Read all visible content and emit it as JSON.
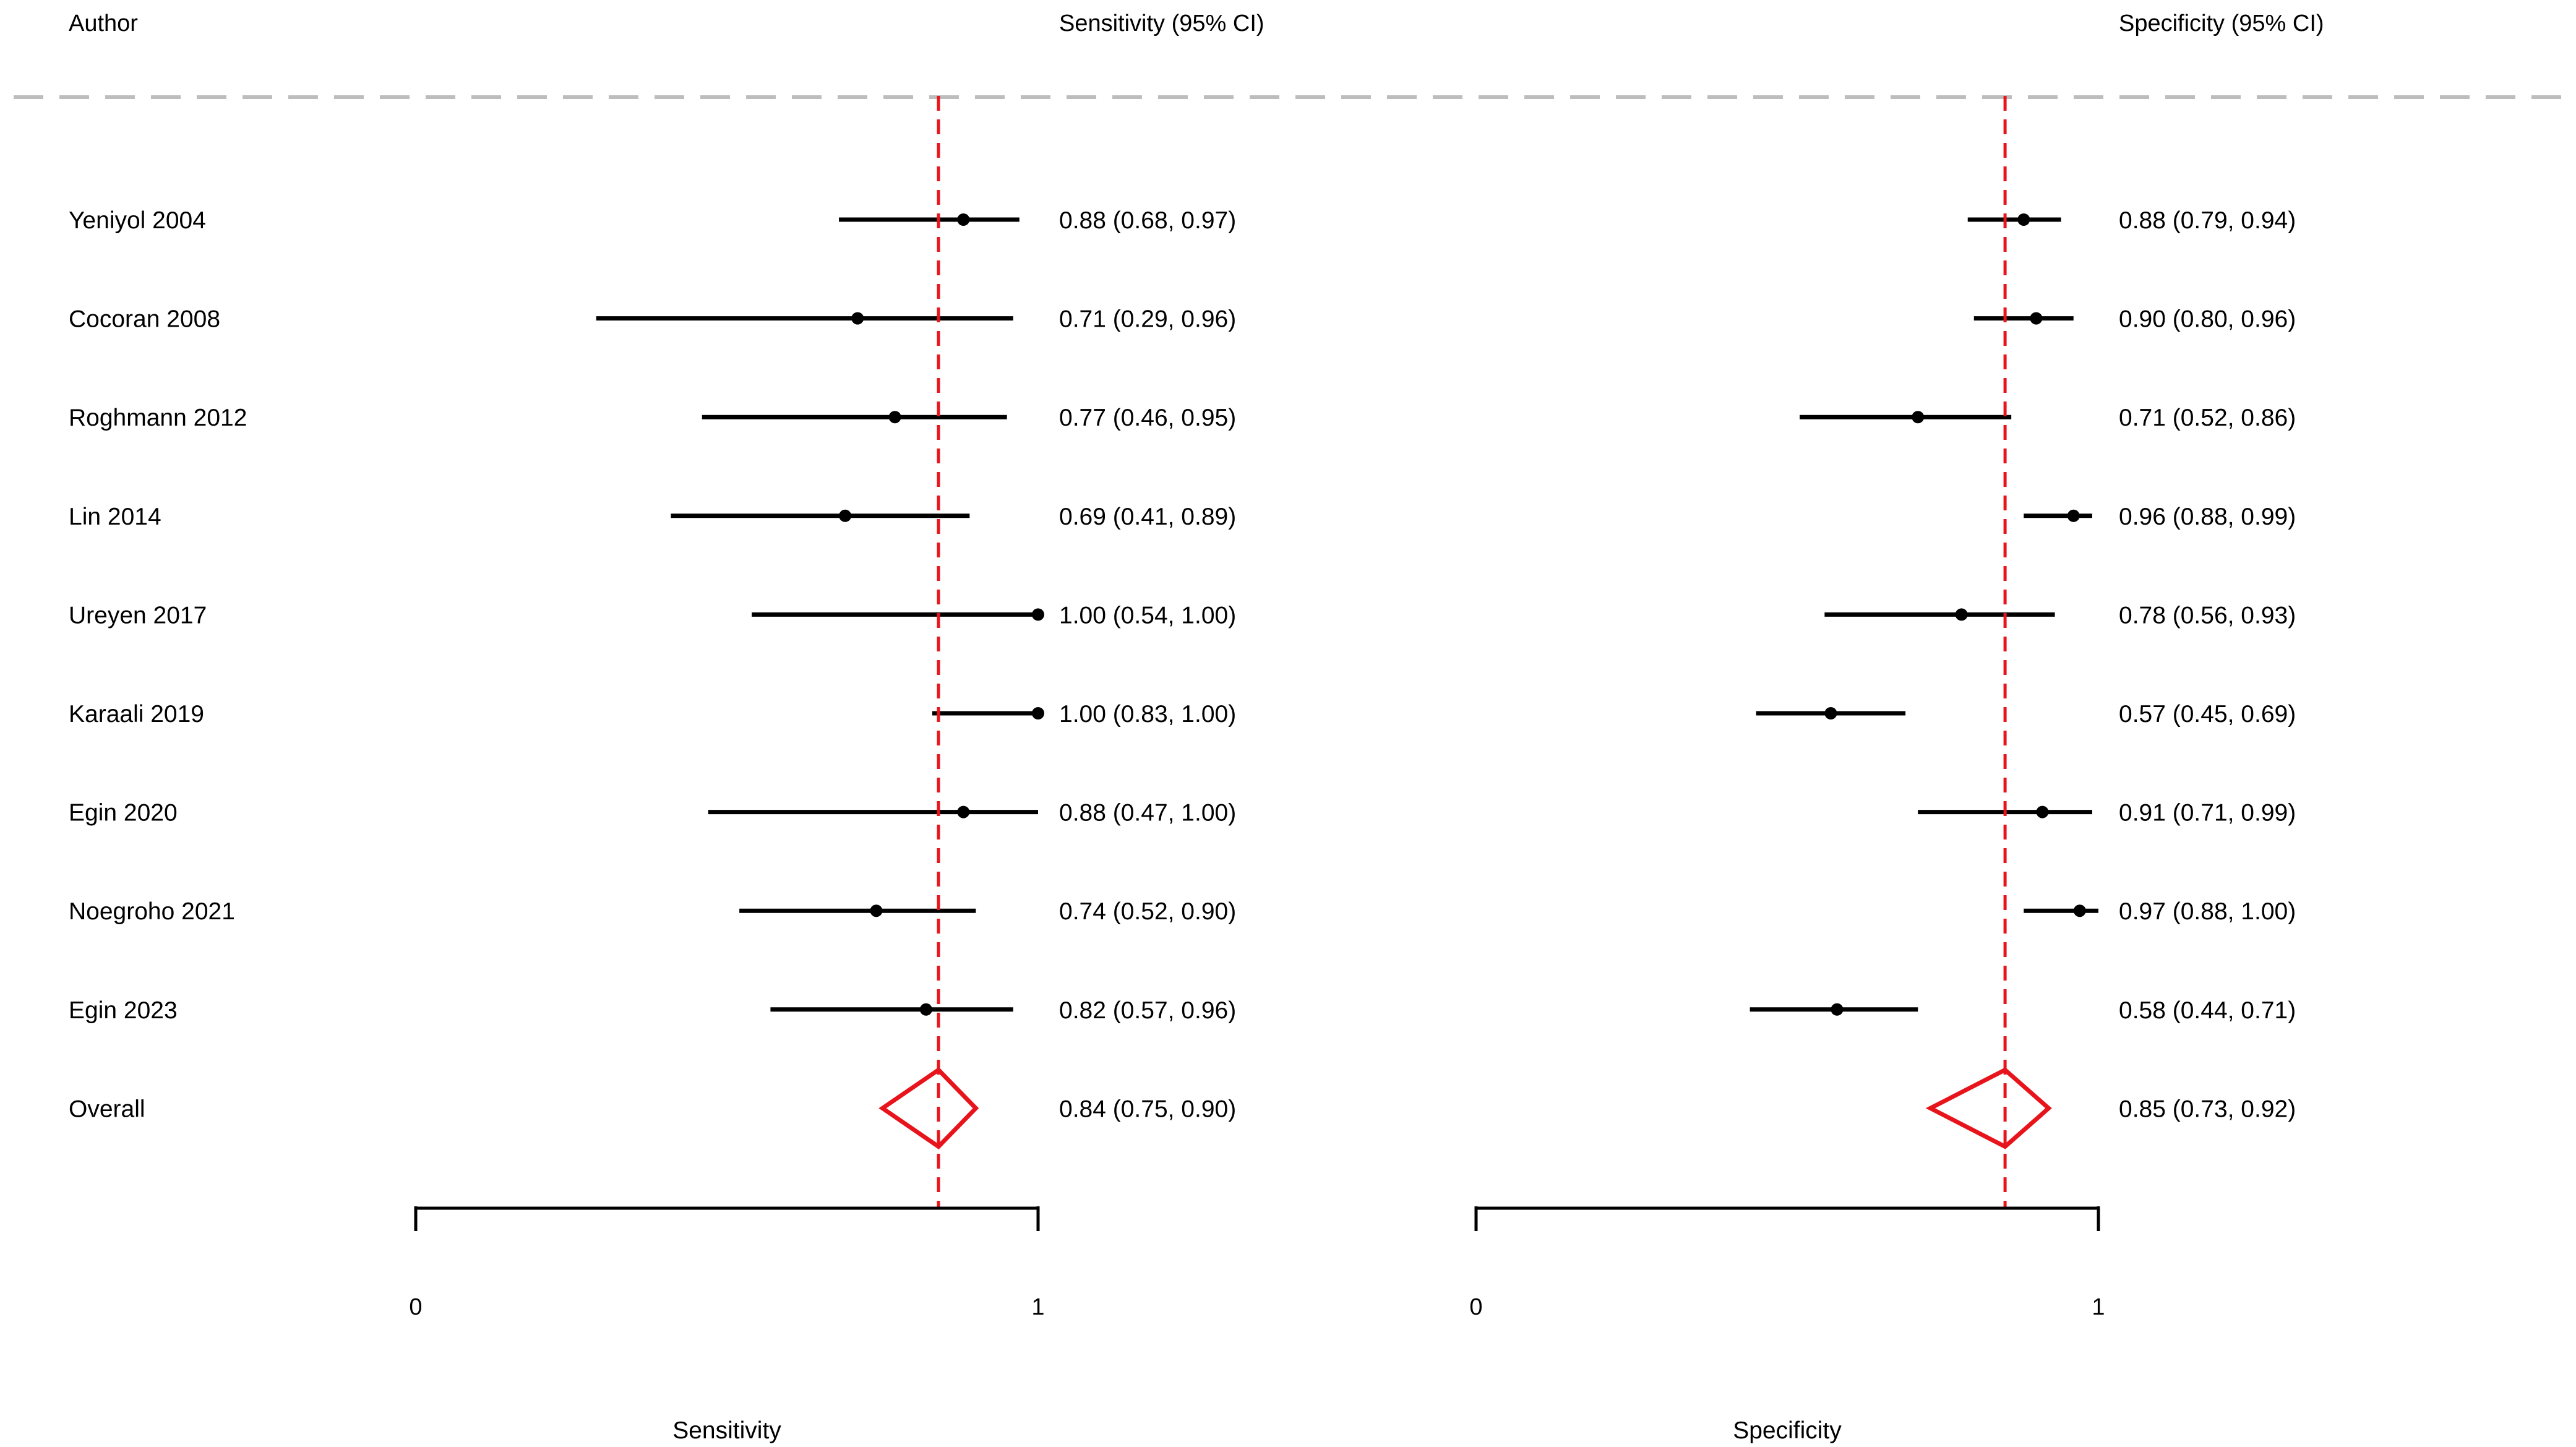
{
  "chart_data": {
    "type": "forest",
    "headers": {
      "author": "Author",
      "sensitivity": "Sensitivity (95% CI)",
      "specificity": "Specificity (95% CI)"
    },
    "studies": [
      {
        "author": "Yeniyol 2004",
        "sens": 0.88,
        "sens_lo": 0.68,
        "sens_hi": 0.97,
        "sens_label": "0.88 (0.68, 0.97)",
        "spec": 0.88,
        "spec_lo": 0.79,
        "spec_hi": 0.94,
        "spec_label": "0.88 (0.79, 0.94)"
      },
      {
        "author": "Cocoran 2008",
        "sens": 0.71,
        "sens_lo": 0.29,
        "sens_hi": 0.96,
        "sens_label": "0.71 (0.29, 0.96)",
        "spec": 0.9,
        "spec_lo": 0.8,
        "spec_hi": 0.96,
        "spec_label": "0.90 (0.80, 0.96)"
      },
      {
        "author": "Roghmann 2012",
        "sens": 0.77,
        "sens_lo": 0.46,
        "sens_hi": 0.95,
        "sens_label": "0.77 (0.46, 0.95)",
        "spec": 0.71,
        "spec_lo": 0.52,
        "spec_hi": 0.86,
        "spec_label": "0.71 (0.52, 0.86)"
      },
      {
        "author": "Lin 2014",
        "sens": 0.69,
        "sens_lo": 0.41,
        "sens_hi": 0.89,
        "sens_label": "0.69 (0.41, 0.89)",
        "spec": 0.96,
        "spec_lo": 0.88,
        "spec_hi": 0.99,
        "spec_label": "0.96 (0.88, 0.99)"
      },
      {
        "author": "Ureyen 2017",
        "sens": 1.0,
        "sens_lo": 0.54,
        "sens_hi": 1.0,
        "sens_label": "1.00 (0.54, 1.00)",
        "spec": 0.78,
        "spec_lo": 0.56,
        "spec_hi": 0.93,
        "spec_label": "0.78 (0.56, 0.93)"
      },
      {
        "author": "Karaali 2019",
        "sens": 1.0,
        "sens_lo": 0.83,
        "sens_hi": 1.0,
        "sens_label": "1.00 (0.83, 1.00)",
        "spec": 0.57,
        "spec_lo": 0.45,
        "spec_hi": 0.69,
        "spec_label": "0.57 (0.45, 0.69)"
      },
      {
        "author": "Egin 2020",
        "sens": 0.88,
        "sens_lo": 0.47,
        "sens_hi": 1.0,
        "sens_label": "0.88 (0.47, 1.00)",
        "spec": 0.91,
        "spec_lo": 0.71,
        "spec_hi": 0.99,
        "spec_label": "0.91 (0.71, 0.99)"
      },
      {
        "author": "Noegroho 2021",
        "sens": 0.74,
        "sens_lo": 0.52,
        "sens_hi": 0.9,
        "sens_label": "0.74 (0.52, 0.90)",
        "spec": 0.97,
        "spec_lo": 0.88,
        "spec_hi": 1.0,
        "spec_label": "0.97 (0.88, 1.00)"
      },
      {
        "author": "Egin 2023",
        "sens": 0.82,
        "sens_lo": 0.57,
        "sens_hi": 0.96,
        "sens_label": "0.82 (0.57, 0.96)",
        "spec": 0.58,
        "spec_lo": 0.44,
        "spec_hi": 0.71,
        "spec_label": "0.58 (0.44, 0.71)"
      }
    ],
    "overall": {
      "author": "Overall",
      "sens": 0.84,
      "sens_lo": 0.75,
      "sens_hi": 0.9,
      "sens_label": "0.84 (0.75, 0.90)",
      "spec": 0.85,
      "spec_lo": 0.73,
      "spec_hi": 0.92,
      "spec_label": "0.85 (0.73, 0.92)"
    },
    "sensitivity_axis": {
      "label": "Sensitivity",
      "range": [
        0,
        1
      ],
      "ticks": [
        "0",
        "1"
      ]
    },
    "specificity_axis": {
      "label": "Specificity",
      "range": [
        0,
        1
      ],
      "ticks": [
        "0",
        "1"
      ]
    },
    "reference_line_color": "#e8141b",
    "diamond_color": "#e8141b",
    "separator_color": "#bdbdbd"
  }
}
